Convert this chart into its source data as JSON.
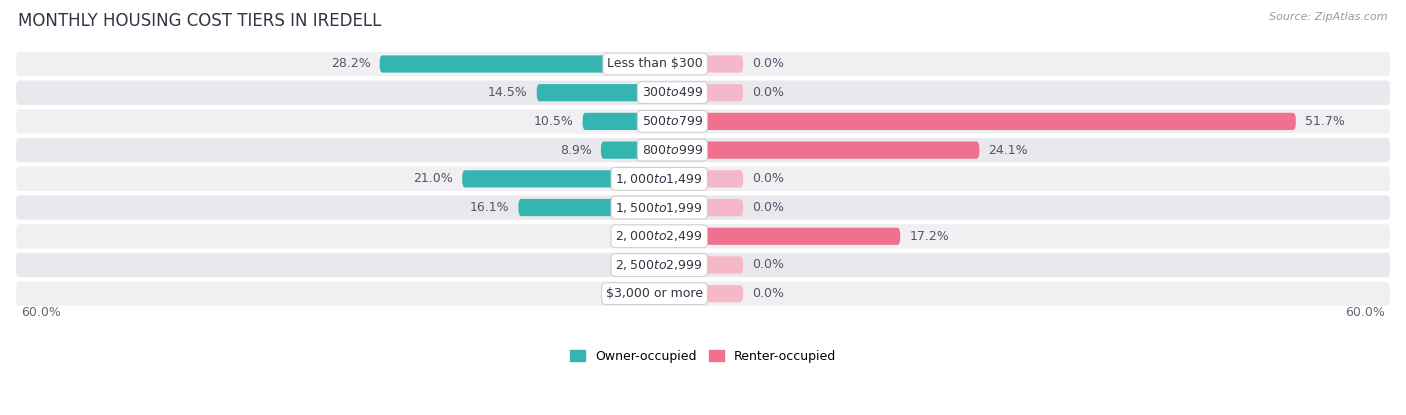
{
  "title": "MONTHLY HOUSING COST TIERS IN IREDELL",
  "source": "Source: ZipAtlas.com",
  "categories": [
    "Less than $300",
    "$300 to $499",
    "$500 to $799",
    "$800 to $999",
    "$1,000 to $1,499",
    "$1,500 to $1,999",
    "$2,000 to $2,499",
    "$2,500 to $2,999",
    "$3,000 or more"
  ],
  "owner_values": [
    28.2,
    14.5,
    10.5,
    8.9,
    21.0,
    16.1,
    0.81,
    0.0,
    0.0
  ],
  "renter_values": [
    0.0,
    0.0,
    51.7,
    24.1,
    0.0,
    0.0,
    17.2,
    0.0,
    0.0
  ],
  "owner_color": "#35b5b0",
  "renter_color": "#f07090",
  "owner_color_light": "#90d0ce",
  "renter_color_light": "#f5b8c8",
  "row_bg_even": "#f0f0f3",
  "row_bg_odd": "#e8e8ed",
  "axis_limit": 60.0,
  "min_bar": 3.5,
  "legend_owner": "Owner-occupied",
  "legend_renter": "Renter-occupied",
  "title_fontsize": 12,
  "label_fontsize": 9,
  "value_fontsize": 9,
  "tick_fontsize": 9
}
